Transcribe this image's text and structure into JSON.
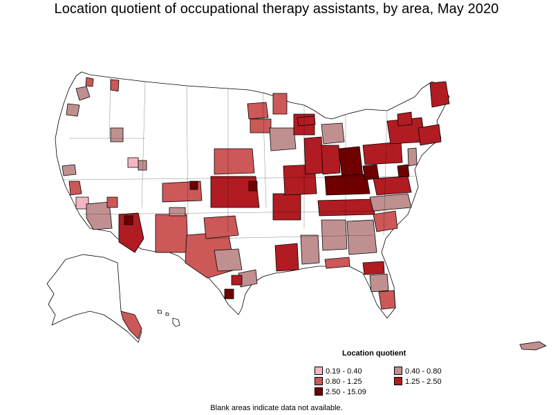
{
  "title": "Location quotient of occupational therapy assistants, by area, May 2020",
  "legend": {
    "title": "Location quotient",
    "items": [
      {
        "label": "0.19 - 0.40",
        "color": "#f4b6c2"
      },
      {
        "label": "0.40 - 0.80",
        "color": "#c09090"
      },
      {
        "label": "0.80 - 1.25",
        "color": "#cc5858"
      },
      {
        "label": "1.25 - 2.50",
        "color": "#b01c22"
      },
      {
        "label": "2.50 - 15.09",
        "color": "#6e0000"
      }
    ]
  },
  "note": "Blank areas indicate data not available.",
  "colors": {
    "none": "#ffffff",
    "border": "#000000"
  }
}
